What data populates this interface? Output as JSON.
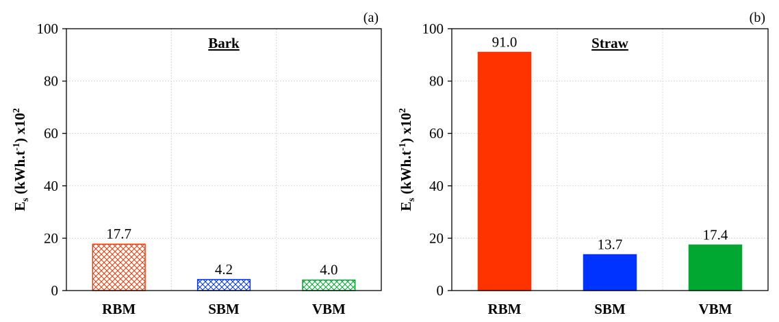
{
  "chart_data": [
    {
      "type": "bar",
      "panel_tag": "(a)",
      "title": "Bark",
      "categories": [
        "RBM",
        "SBM",
        "VBM"
      ],
      "values": [
        17.7,
        4.2,
        4.0
      ],
      "value_labels": [
        "17.7",
        "4.2",
        "4.0"
      ],
      "fill_style": "hatched",
      "colors": [
        "#ff3300",
        "#0033ff",
        "#00a832"
      ],
      "ylabel": {
        "main": "E",
        "sub": "s",
        "mid": " (kWh.t",
        "sup": "-1",
        "end": ") x10",
        "sup2": "2"
      },
      "ylim": [
        0,
        100
      ],
      "yticks": [
        0,
        20,
        40,
        60,
        80,
        100
      ],
      "grid": true
    },
    {
      "type": "bar",
      "panel_tag": "(b)",
      "title": "Straw",
      "categories": [
        "RBM",
        "SBM",
        "VBM"
      ],
      "values": [
        91.0,
        13.7,
        17.4
      ],
      "value_labels": [
        "91.0",
        "13.7",
        "17.4"
      ],
      "fill_style": "solid",
      "colors": [
        "#ff3300",
        "#0033ff",
        "#00a832"
      ],
      "ylabel": {
        "main": "E",
        "sub": "s",
        "mid": " (kWh.t",
        "sup": "-1",
        "end": ") x10",
        "sup2": "2"
      },
      "ylim": [
        0,
        100
      ],
      "yticks": [
        0,
        20,
        40,
        60,
        80,
        100
      ],
      "grid": true
    }
  ]
}
